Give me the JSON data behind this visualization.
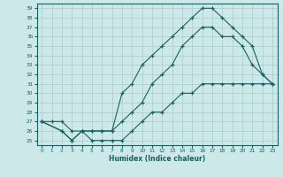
{
  "xlabel": "Humidex (Indice chaleur)",
  "bg_color": "#cce8e8",
  "grid_color": "#aacccc",
  "line_color": "#1a6060",
  "xlim": [
    -0.5,
    23.5
  ],
  "ylim": [
    24.5,
    39.5
  ],
  "xticks": [
    0,
    1,
    2,
    3,
    4,
    5,
    6,
    7,
    8,
    9,
    10,
    11,
    12,
    13,
    14,
    15,
    16,
    17,
    18,
    19,
    20,
    21,
    22,
    23
  ],
  "yticks": [
    25,
    26,
    27,
    28,
    29,
    30,
    31,
    32,
    33,
    34,
    35,
    36,
    37,
    38,
    39
  ],
  "line1_x": [
    0,
    1,
    2,
    3,
    4,
    5,
    6,
    7,
    8,
    9,
    10,
    11,
    12,
    13,
    14,
    15,
    16,
    17,
    18,
    19,
    20,
    21,
    22,
    23
  ],
  "line1_y": [
    27,
    27,
    27,
    26,
    26,
    25,
    25,
    25,
    25,
    26,
    27,
    28,
    28,
    29,
    30,
    30,
    31,
    31,
    31,
    31,
    31,
    31,
    31,
    31
  ],
  "line2_x": [
    0,
    2,
    3,
    4,
    5,
    6,
    7,
    8,
    9,
    10,
    11,
    12,
    13,
    14,
    15,
    16,
    17,
    18,
    19,
    20,
    21,
    22,
    23
  ],
  "line2_y": [
    27,
    26,
    25,
    26,
    26,
    26,
    26,
    27,
    28,
    29,
    31,
    32,
    33,
    35,
    36,
    37,
    37,
    36,
    36,
    35,
    33,
    32,
    31
  ],
  "line3_x": [
    0,
    2,
    3,
    4,
    5,
    6,
    7,
    8,
    9,
    10,
    11,
    12,
    13,
    14,
    15,
    16,
    17,
    18,
    19,
    20,
    21,
    22,
    23
  ],
  "line3_y": [
    27,
    26,
    25,
    26,
    26,
    26,
    26,
    30,
    31,
    33,
    34,
    35,
    36,
    37,
    38,
    39,
    39,
    38,
    37,
    36,
    35,
    32,
    31
  ]
}
